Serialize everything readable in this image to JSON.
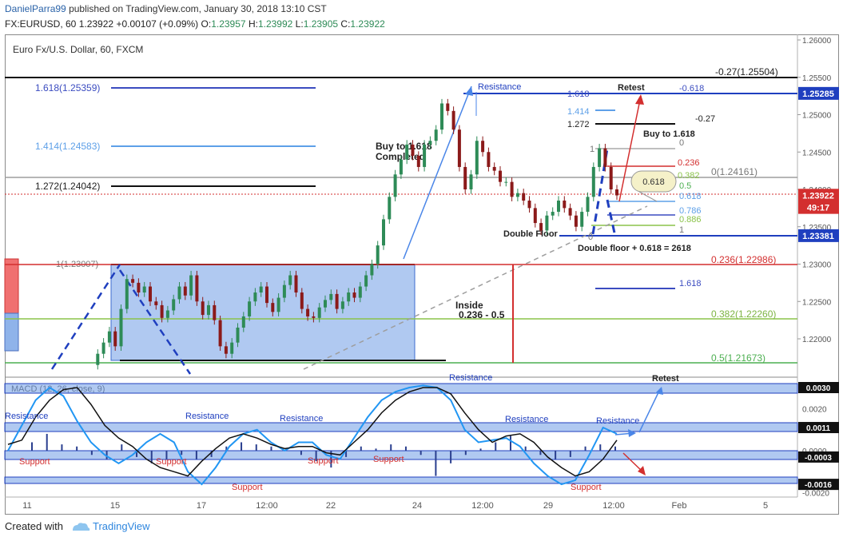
{
  "header": {
    "user": "DanielParra99",
    "published": "published on TradingView.com, January 30, 2018 13:10 CST",
    "symbol": "FX:EURUSD, 60",
    "last": "1.23922",
    "change": "+0.00107 (+0.09%)",
    "o_label": "O:",
    "o": "1.23957",
    "h_label": "H:",
    "h": "1.23992",
    "l_label": "L:",
    "l": "1.23905",
    "c_label": "C:",
    "c": "1.23922"
  },
  "footer": {
    "created_with": "Created with",
    "brand": "TradingView"
  },
  "colors": {
    "up": "#2e8b57",
    "down": "#8b1a1a",
    "box": "#6f9ce6",
    "support_line": "#2f3f9e",
    "red": "#d32f2f",
    "fib_blue": "#3b4cc0",
    "fib_light": "#5ea0e8",
    "green": "#8bc34a",
    "macd": "#111111",
    "signal": "#2196f3"
  },
  "chart_data": [
    {
      "type": "line",
      "title": "Euro Fx/U.S. Dollar, 60, FXCM",
      "ylim": [
        1.2152,
        1.2617
      ],
      "y_ticks": [
        "1.26000",
        "1.25500",
        "1.25000",
        "1.24500",
        "1.24000",
        "1.23500",
        "1.23000",
        "1.22500",
        "1.22000"
      ],
      "y_tick_values": [
        1.26,
        1.255,
        1.25,
        1.245,
        1.24,
        1.235,
        1.23,
        1.225,
        1.22
      ],
      "x_ticks": [
        "11",
        "15",
        "17",
        "12:00",
        "22",
        "24",
        "12:00",
        "29",
        "12:00",
        "Feb",
        "5"
      ],
      "price_series": {
        "name": "EURUSD",
        "values": [
          1.2165,
          1.218,
          1.2195,
          1.221,
          1.219,
          1.224,
          1.228,
          1.2275,
          1.2262,
          1.227,
          1.225,
          1.2245,
          1.2228,
          1.2238,
          1.2253,
          1.227,
          1.2258,
          1.2285,
          1.225,
          1.2232,
          1.2245,
          1.2225,
          1.219,
          1.218,
          1.2195,
          1.2215,
          1.223,
          1.225,
          1.2262,
          1.227,
          1.2248,
          1.2236,
          1.2255,
          1.2272,
          1.2285,
          1.2262,
          1.224,
          1.223,
          1.2228,
          1.2242,
          1.2252,
          1.226,
          1.224,
          1.225,
          1.2262,
          1.2255,
          1.227,
          1.2285,
          1.23,
          1.2325,
          1.236,
          1.239,
          1.242,
          1.244,
          1.246,
          1.2445,
          1.243,
          1.246,
          1.2465,
          1.248,
          1.2515,
          1.2505,
          1.248,
          1.243,
          1.24,
          1.242,
          1.2465,
          1.245,
          1.243,
          1.2425,
          1.241,
          1.241,
          1.239,
          1.2395,
          1.2385,
          1.2375,
          1.2355,
          1.2345,
          1.2365,
          1.237,
          1.2385,
          1.2375,
          1.2365,
          1.235,
          1.237,
          1.239,
          1.243,
          1.2455,
          1.243,
          1.24,
          1.2392
        ]
      },
      "levels": [
        {
          "label": "-0.27(1.25504)",
          "value": 1.25504
        },
        {
          "label": "1.618(1.25359)",
          "value": 1.25359
        },
        {
          "label": "1.414(1.24583)",
          "value": 1.24583
        },
        {
          "label": "1.272(1.24042)",
          "value": 1.24042
        },
        {
          "label": "0(1.24161)",
          "value": 1.24161
        },
        {
          "label": "1(1.23007)",
          "value": 1.23007
        },
        {
          "label": "0.236(1.22986)",
          "value": 1.22986
        },
        {
          "label": "0.382(1.22260)",
          "value": 1.2226
        },
        {
          "label": "0.5(1.21673)",
          "value": 1.21673
        }
      ],
      "small_fib": [
        "1.618",
        "1.414",
        "1.272",
        "-0.27",
        "-0.618",
        "1",
        "0",
        "0.236",
        "0.382",
        "0.5",
        "0.618",
        "0.786",
        "0.886",
        "0",
        "1",
        "1.618"
      ],
      "annotations": {
        "resistance_top": "Resistance",
        "retest_top": "Retest",
        "buy_completed_1": "Buy to 1.618",
        "buy_completed_2": "Completed",
        "buy_to": "Buy to 1.618",
        "double_floor": "Double Floor",
        "double_floor_sum": "Double floor + 0.618 = 2618",
        "inside_1": "Inside",
        "inside_2": "0.236 - 0.5",
        "bubble": "0.618"
      },
      "price_tags": [
        {
          "label": "1.25285",
          "value": 1.25285,
          "color": "#1f3fbf"
        },
        {
          "label": "1.23922",
          "value": 1.23922,
          "color": "#d32f2f"
        },
        {
          "label": "49:17",
          "value": 1.23758,
          "color": "#d32f2f"
        },
        {
          "label": "1.23381",
          "value": 1.23381,
          "color": "#1f3fbf"
        }
      ]
    },
    {
      "type": "line",
      "title": "MACD (12, 26, close, 9)",
      "ylim": [
        -0.0021,
        0.0036
      ],
      "y_ticks": [
        "0.0030",
        "0.0020",
        "0.0011",
        "0.0000",
        "-0.0003",
        "-0.0016",
        "-0.0020"
      ],
      "y_tick_values": [
        0.003,
        0.002,
        0.0011,
        0.0,
        -0.0003,
        -0.0016,
        -0.002
      ],
      "series": [
        {
          "name": "MACD",
          "values": [
            0.0003,
            0.0005,
            0.0016,
            0.0024,
            0.0029,
            0.003,
            0.0022,
            0.0012,
            0.0006,
            0.0002,
            -0.0004,
            -0.0008,
            -0.001,
            -0.0012,
            -0.0005,
            0.0001,
            0.0006,
            0.0008,
            0.0006,
            0.0003,
            0.0001,
            0.0002,
            0.0002,
            -0.0001,
            -0.0002,
            0.0004,
            0.001,
            0.0018,
            0.0024,
            0.0028,
            0.003,
            0.003,
            0.0027,
            0.0018,
            0.001,
            0.0004,
            0.0007,
            0.0008,
            0.0004,
            -0.0003,
            -0.0008,
            -0.0012,
            -0.001,
            -0.0004,
            0.0005
          ]
        },
        {
          "name": "Signal",
          "values": [
            0.0,
            0.0012,
            0.0024,
            0.003,
            0.0026,
            0.0014,
            0.0004,
            -0.0002,
            -0.0006,
            -0.0002,
            0.0004,
            0.0008,
            0.0004,
            -0.001,
            -0.0016,
            -0.0008,
            0.0002,
            0.0008,
            0.001,
            0.0004,
            0.0,
            0.0004,
            0.0004,
            -0.0002,
            -0.0004,
            0.0006,
            0.0016,
            0.0024,
            0.0028,
            0.003,
            0.0031,
            0.003,
            0.0024,
            0.001,
            0.0004,
            0.0005,
            0.0006,
            0.0002,
            -0.0006,
            -0.0012,
            -0.0016,
            -0.0014,
            -0.0002,
            0.0011,
            0.0008
          ]
        },
        {
          "name": "Histogram",
          "values": [
            0.0004,
            0.0008,
            0.0003,
            0.0002,
            -0.0002,
            -0.0004,
            0.0003,
            -0.0003,
            -0.0006,
            -0.0004,
            -0.0002,
            -0.0004,
            -0.0003,
            0.0002,
            0.0004,
            0.0003,
            0.0002,
            0.0001,
            -0.0002,
            -0.0005,
            -0.0008,
            -0.0003,
            0.0002,
            0.0001,
            0.0003,
            0.0002,
            -0.0002,
            -0.0012,
            -0.0006,
            -0.0002,
            0.0001,
            0.0004,
            0.0007,
            0.0002,
            -0.0002,
            -0.0004,
            -0.0003,
            0.0002,
            0.0003,
            0.0002
          ]
        }
      ],
      "labels": {
        "resistance": "Resistance",
        "support": "Support",
        "retest": "Retest"
      },
      "price_tags": [
        {
          "label": "0.0030",
          "value": 0.003
        },
        {
          "label": "0.0011",
          "value": 0.0011
        },
        {
          "label": "-0.0003",
          "value": -0.0003
        },
        {
          "label": "-0.0016",
          "value": -0.0016
        }
      ]
    }
  ]
}
